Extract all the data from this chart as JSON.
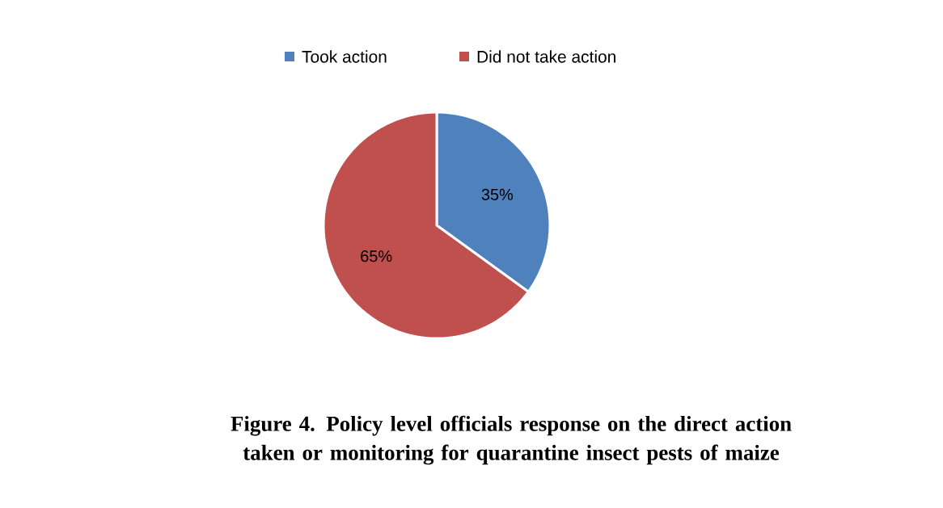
{
  "chart_data": {
    "type": "pie",
    "title": "Figure 4. Policy level officials response on the direct action taken or monitoring for quarantine insect pests of maize",
    "categories": [
      "Took action",
      "Did not take action"
    ],
    "values": [
      35,
      65
    ],
    "colors": [
      "#4f81bd",
      "#c0504d"
    ],
    "value_labels": [
      "35%",
      "65%"
    ],
    "legend": "top"
  }
}
